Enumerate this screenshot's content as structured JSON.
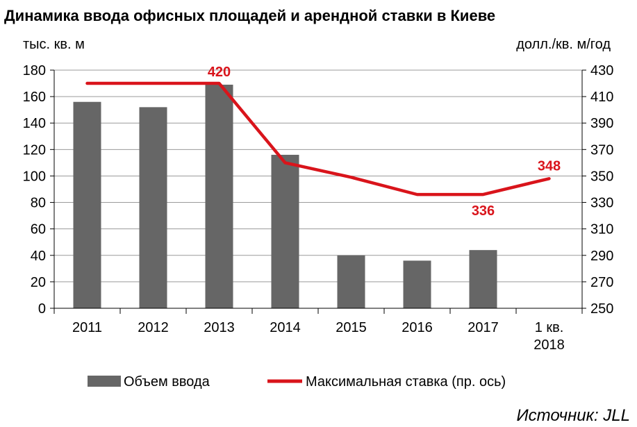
{
  "chart_data": {
    "type": "bar",
    "title": "Динамика ввода офисных площадей и арендной ставки в Киеве",
    "ylabel": "тыс. кв. м",
    "y2label": "долл./кв. м/год",
    "categories": [
      "2011",
      "2012",
      "2013",
      "2014",
      "2015",
      "2016",
      "2017",
      "1 кв. 2018"
    ],
    "ylim": [
      0,
      180
    ],
    "y2lim": [
      250,
      430
    ],
    "yticks": [
      "0",
      "20",
      "40",
      "60",
      "80",
      "100",
      "120",
      "140",
      "160",
      "180"
    ],
    "y2ticks": [
      "250",
      "270",
      "290",
      "310",
      "330",
      "350",
      "370",
      "390",
      "410",
      "430"
    ],
    "grid": true,
    "legend_position": "bottom",
    "series": [
      {
        "name": "Объем ввода",
        "type": "bar",
        "axis": "left",
        "color": "#666666",
        "values": [
          156,
          152,
          169,
          116,
          40,
          36,
          44,
          null
        ]
      },
      {
        "name": "Максимальная ставка (пр. ось)",
        "type": "line",
        "axis": "right",
        "color": "#d9141b",
        "values": [
          420,
          420,
          420,
          360,
          349,
          336,
          336,
          348
        ]
      }
    ],
    "data_labels": [
      {
        "category": "2013",
        "text": "420"
      },
      {
        "category": "2017",
        "text": "336"
      },
      {
        "category": "1 кв. 2018",
        "text": "348"
      }
    ],
    "source": "Источник: JLL"
  }
}
